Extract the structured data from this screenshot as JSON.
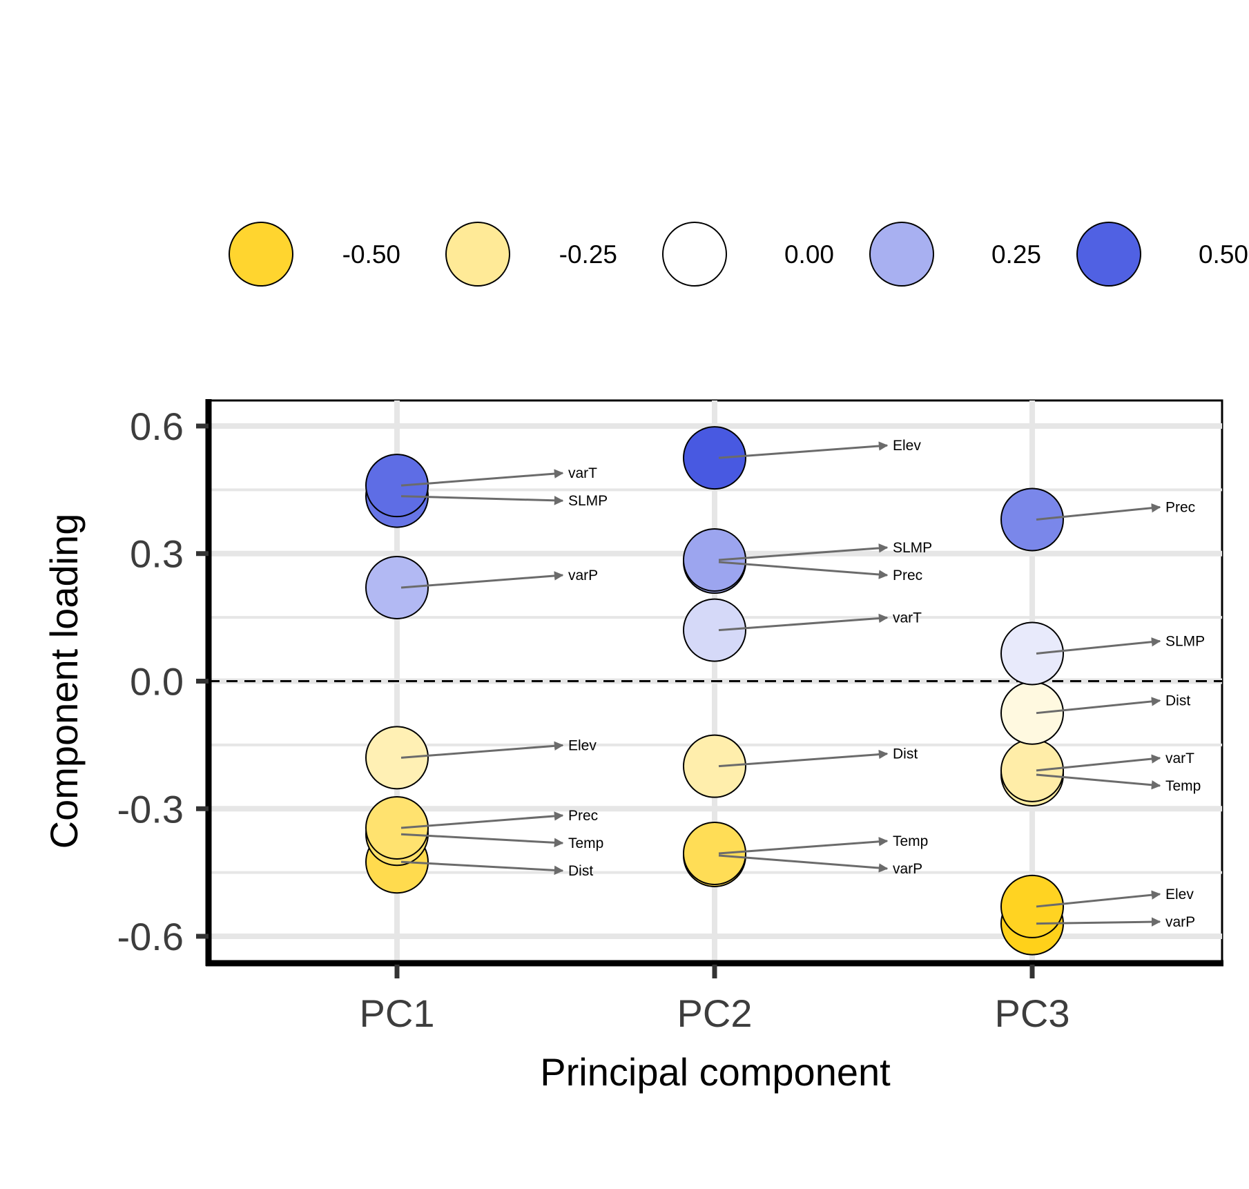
{
  "chart_data": {
    "type": "scatter",
    "xlabel": "Principal component",
    "ylabel": "Component loading",
    "categories": [
      "PC1",
      "PC2",
      "PC3"
    ],
    "ylim": [
      -0.66,
      0.66
    ],
    "yticks": [
      0.6,
      0.3,
      0.0,
      -0.3,
      -0.6
    ],
    "ytick_labels": [
      "0.6",
      "0.3",
      "0.0",
      "-0.3",
      "-0.6"
    ],
    "grid": true,
    "reference_line": {
      "y": 0.0,
      "style": "dashed"
    },
    "color_scale": {
      "low": "#FFD11A",
      "mid": "#FFFFFF",
      "high": "#3F51E0",
      "legend_values": [
        -0.5,
        -0.25,
        0.0,
        0.25,
        0.5
      ],
      "legend_labels": [
        "-0.50",
        "-0.25",
        "0.00",
        "0.25",
        "0.50"
      ],
      "legend_position": "top"
    },
    "points": [
      {
        "component": "PC1",
        "variable": "varT",
        "loading": 0.46
      },
      {
        "component": "PC1",
        "variable": "SLMP",
        "loading": 0.435
      },
      {
        "component": "PC1",
        "variable": "varP",
        "loading": 0.22
      },
      {
        "component": "PC1",
        "variable": "Elev",
        "loading": -0.18
      },
      {
        "component": "PC1",
        "variable": "Prec",
        "loading": -0.345
      },
      {
        "component": "PC1",
        "variable": "Temp",
        "loading": -0.36
      },
      {
        "component": "PC1",
        "variable": "Dist",
        "loading": -0.425
      },
      {
        "component": "PC2",
        "variable": "Elev",
        "loading": 0.525
      },
      {
        "component": "PC2",
        "variable": "SLMP",
        "loading": 0.285
      },
      {
        "component": "PC2",
        "variable": "Prec",
        "loading": 0.28
      },
      {
        "component": "PC2",
        "variable": "varT",
        "loading": 0.12
      },
      {
        "component": "PC2",
        "variable": "Dist",
        "loading": -0.2
      },
      {
        "component": "PC2",
        "variable": "Temp",
        "loading": -0.405
      },
      {
        "component": "PC2",
        "variable": "varP",
        "loading": -0.41
      },
      {
        "component": "PC3",
        "variable": "Prec",
        "loading": 0.38
      },
      {
        "component": "PC3",
        "variable": "SLMP",
        "loading": 0.065
      },
      {
        "component": "PC3",
        "variable": "Dist",
        "loading": -0.075
      },
      {
        "component": "PC3",
        "variable": "varT",
        "loading": -0.21
      },
      {
        "component": "PC3",
        "variable": "Temp",
        "loading": -0.22
      },
      {
        "component": "PC3",
        "variable": "Elev",
        "loading": -0.53
      },
      {
        "component": "PC3",
        "variable": "varP",
        "loading": -0.57
      }
    ]
  }
}
